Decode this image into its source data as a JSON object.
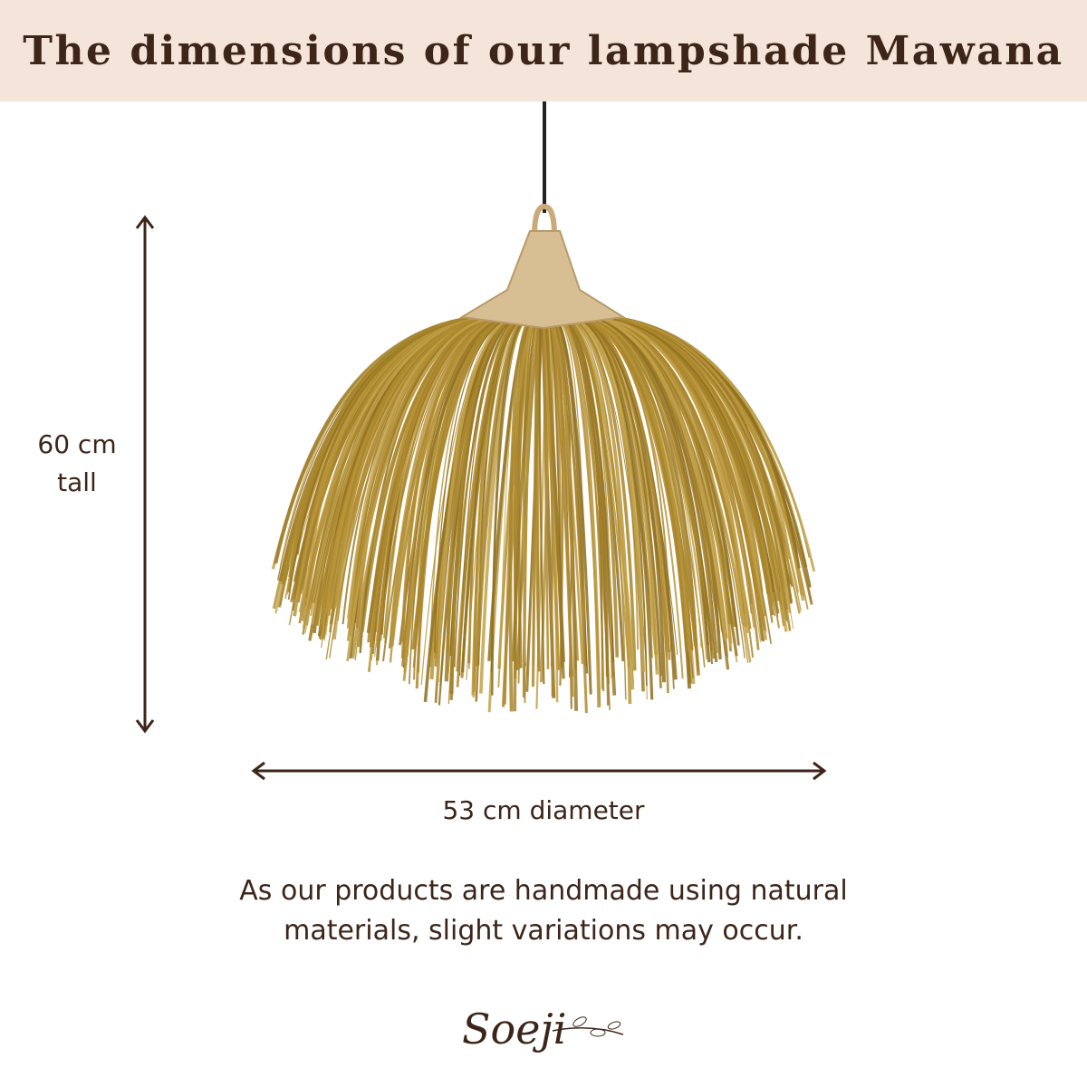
{
  "header": {
    "title": "The dimensions of our lampshade Mawana",
    "background": "#f5e4d9",
    "text_color": "#3d2519"
  },
  "dimensions": {
    "height_value": "60 cm",
    "height_unit_word": "tall",
    "diameter": "53 cm diameter"
  },
  "note": {
    "line1": "As our products are handmade using natural",
    "line2": "materials, slight variations may occur."
  },
  "logo": {
    "text": "Soeji"
  },
  "product": {
    "image": "woven-grass-lampshade",
    "grass_color": "#a8862c"
  }
}
